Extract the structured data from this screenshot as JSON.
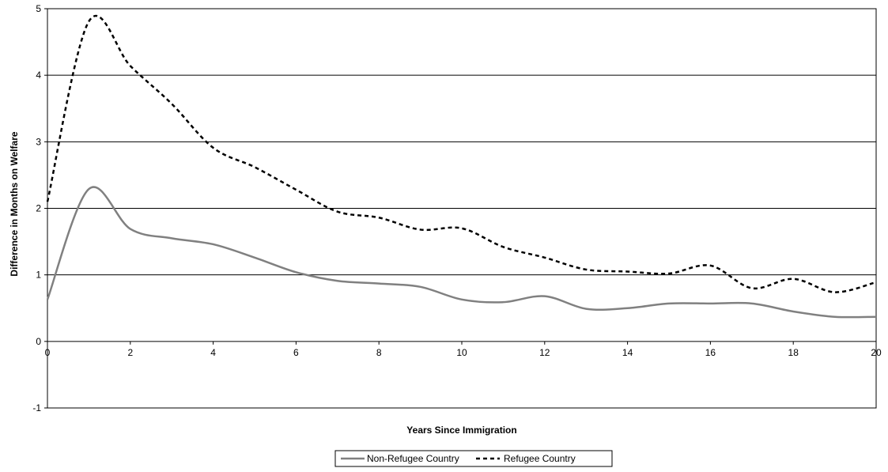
{
  "chart_data": {
    "type": "line",
    "title": "",
    "xlabel": "Years Since Immigration",
    "ylabel": "Difference in Months on Welfare",
    "xlim": [
      0,
      20
    ],
    "ylim": [
      -1,
      5
    ],
    "xticks": [
      "0",
      "2",
      "4",
      "6",
      "8",
      "10",
      "12",
      "14",
      "16",
      "18",
      "20"
    ],
    "yticks": [
      "-1",
      "0",
      "1",
      "2",
      "3",
      "4",
      "5"
    ],
    "grid": "horizontal-major",
    "legend_position": "bottom-center",
    "series": [
      {
        "name": "Non-Refugee Country",
        "color": "#808080",
        "style": "solid",
        "x": [
          0,
          1,
          2,
          3,
          4,
          5,
          6,
          7,
          8,
          9,
          10,
          11,
          12,
          13,
          14,
          15,
          16,
          17,
          18,
          19,
          20
        ],
        "y": [
          0.63,
          2.29,
          1.69,
          1.55,
          1.46,
          1.26,
          1.04,
          0.91,
          0.87,
          0.82,
          0.63,
          0.59,
          0.68,
          0.49,
          0.5,
          0.57,
          0.57,
          0.57,
          0.45,
          0.37,
          0.37
        ]
      },
      {
        "name": "Refugee Country",
        "color": "#000000",
        "style": "dashed",
        "x": [
          0,
          1,
          2,
          3,
          4,
          5,
          6,
          7,
          8,
          9,
          10,
          11,
          12,
          13,
          14,
          15,
          16,
          17,
          18,
          19,
          20
        ],
        "y": [
          2.1,
          4.81,
          4.14,
          3.57,
          2.91,
          2.62,
          2.28,
          1.95,
          1.86,
          1.68,
          1.7,
          1.42,
          1.26,
          1.08,
          1.05,
          1.02,
          1.14,
          0.8,
          0.94,
          0.74,
          0.89
        ]
      }
    ]
  }
}
